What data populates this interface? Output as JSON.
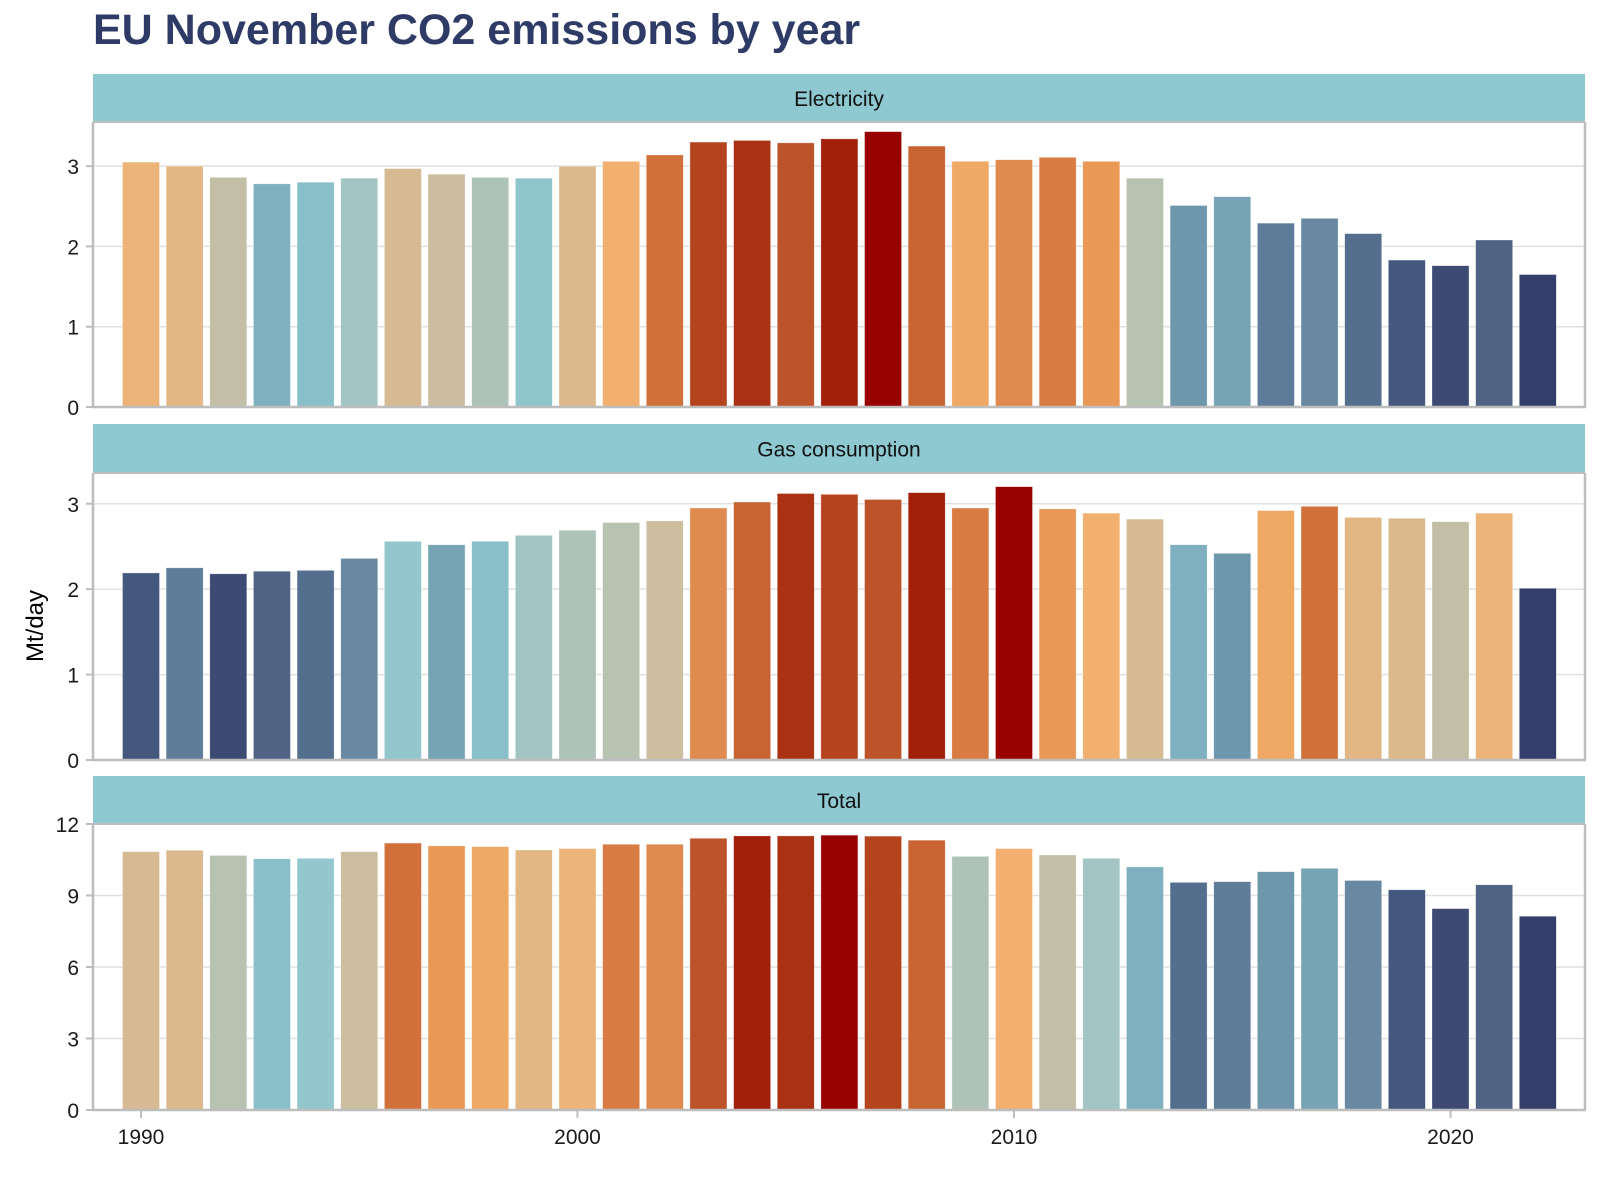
{
  "chart_data": {
    "type": "bar",
    "title": "EU November CO2 emissions by year",
    "xlabel": "",
    "ylabel": "Mt/day",
    "x": [
      1990,
      1991,
      1992,
      1993,
      1994,
      1995,
      1996,
      1997,
      1998,
      1999,
      2000,
      2001,
      2002,
      2003,
      2004,
      2005,
      2006,
      2007,
      2008,
      2009,
      2010,
      2011,
      2012,
      2013,
      2014,
      2015,
      2016,
      2017,
      2018,
      2019,
      2020,
      2021,
      2022
    ],
    "x_ticks": [
      1990,
      2000,
      2010,
      2020
    ],
    "grid": true,
    "layout": "facets stacked vertically, shared x-axis, free y-scales",
    "facets": [
      {
        "name": "Electricity",
        "ylim": [
          0,
          3.55
        ],
        "y_ticks": [
          0,
          1,
          2,
          3
        ],
        "values": [
          3.05,
          3.0,
          2.86,
          2.78,
          2.8,
          2.85,
          2.97,
          2.9,
          2.86,
          2.85,
          3.0,
          3.06,
          3.14,
          3.3,
          3.32,
          3.29,
          3.34,
          3.43,
          3.25,
          3.06,
          3.08,
          3.11,
          3.06,
          2.85,
          2.51,
          2.62,
          2.29,
          2.35,
          2.16,
          1.83,
          1.76,
          2.08,
          1.65
        ],
        "colors": [
          "#ecb478",
          "#e3b784",
          "#c2bfa6",
          "#7fb0bf",
          "#88bfc8",
          "#a2c5c3",
          "#d5ba93",
          "#ccbd9f",
          "#aec3b8",
          "#8fc6cc",
          "#dcb98d",
          "#f2b070",
          "#d0713c",
          "#b5431d",
          "#aa3114",
          "#bd5328",
          "#a21f0a",
          "#990000",
          "#c86332",
          "#f0a865",
          "#e08a4f",
          "#d97c44",
          "#e99856",
          "#b8c2b0",
          "#6e97ad",
          "#77a4b4",
          "#5e7c99",
          "#6889a1",
          "#546f8e",
          "#44587e",
          "#3d4b74",
          "#4f6385",
          "#343e6a"
        ]
      },
      {
        "name": "Gas consumption",
        "ylim": [
          0,
          3.36
        ],
        "y_ticks": [
          0,
          1,
          2,
          3
        ],
        "values": [
          2.19,
          2.25,
          2.18,
          2.21,
          2.22,
          2.36,
          2.56,
          2.52,
          2.56,
          2.63,
          2.69,
          2.78,
          2.8,
          2.95,
          3.02,
          3.12,
          3.11,
          3.05,
          3.13,
          2.95,
          3.2,
          2.94,
          2.89,
          2.82,
          2.52,
          2.42,
          2.92,
          2.97,
          2.84,
          2.83,
          2.79,
          2.89,
          2.01
        ],
        "colors": [
          "#44587e",
          "#5f7d99",
          "#3d4b74",
          "#4f6385",
          "#546f8e",
          "#6889a1",
          "#93c7cd",
          "#77a4b4",
          "#88bfc8",
          "#a2c5c3",
          "#aec3b8",
          "#b8c2b0",
          "#cdbe9f",
          "#e08a4f",
          "#c86332",
          "#aa3114",
          "#b5431d",
          "#bd5328",
          "#a21f0a",
          "#d97c44",
          "#990000",
          "#e99856",
          "#f2b070",
          "#d5ba93",
          "#7fb0bf",
          "#6e97ad",
          "#f0a865",
          "#d0713c",
          "#e3b784",
          "#dcb98d",
          "#c2bfa6",
          "#ecb478",
          "#343e6a"
        ]
      },
      {
        "name": "Total",
        "ylim": [
          0,
          12
        ],
        "y_ticks": [
          0,
          3,
          6,
          9,
          12
        ],
        "values": [
          10.84,
          10.9,
          10.68,
          10.54,
          10.56,
          10.84,
          11.2,
          11.08,
          11.05,
          10.91,
          10.97,
          11.15,
          11.15,
          11.4,
          11.5,
          11.5,
          11.53,
          11.49,
          11.32,
          10.64,
          10.97,
          10.7,
          10.56,
          10.2,
          9.55,
          9.58,
          10.0,
          10.14,
          9.63,
          9.24,
          8.45,
          9.45,
          8.13
        ],
        "colors": [
          "#d5ba93",
          "#dcb98d",
          "#b8c2b0",
          "#88bfc8",
          "#93c7cd",
          "#cdbe9f",
          "#d0713c",
          "#e99856",
          "#f0a865",
          "#e3b784",
          "#ecb478",
          "#d97c44",
          "#e08a4f",
          "#bd5328",
          "#a21f0a",
          "#aa3114",
          "#990000",
          "#b5431d",
          "#c86332",
          "#aec3b8",
          "#f2b070",
          "#c2bfa6",
          "#a2c5c3",
          "#7fb0bf",
          "#546f8e",
          "#5f7d99",
          "#6e97ad",
          "#77a4b4",
          "#6889a1",
          "#44587e",
          "#3d4b74",
          "#4f6385",
          "#343e6a"
        ]
      }
    ]
  },
  "colors": {
    "title": "#2e3b66",
    "strip_fill": "#8ec8d0",
    "panel_border": "#bdbdbd",
    "gridline": "#e0e0e0"
  }
}
